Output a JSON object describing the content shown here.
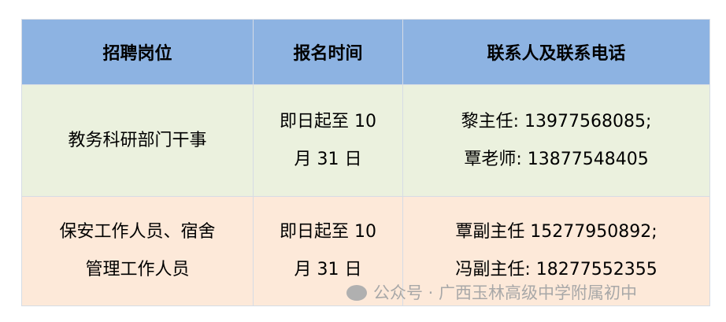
{
  "headers": [
    "招聘岗位",
    "报名时间",
    "联系人及联系电话"
  ],
  "rows": [
    {
      "position": [
        "教务科研部门干事"
      ],
      "time": [
        "即日起至 10",
        "月 31 日"
      ],
      "contacts": [
        "黎主任:  13977568085;",
        "覃老师:  13877548405"
      ]
    },
    {
      "position": [
        "保安工作人员、宿舍",
        "管理工作人员"
      ],
      "time": [
        "即日起至 10",
        "月 31 日"
      ],
      "contacts": [
        "覃副主任 15277950892;",
        "冯副主任:  18277552355"
      ]
    }
  ],
  "watermark": {
    "icon": "wechat-icon",
    "text": "公众号 · 广西玉林高级中学附属初中"
  },
  "colors": {
    "header": "#8db3e2",
    "row1": "#ebf1de",
    "row2": "#fde9d9"
  }
}
